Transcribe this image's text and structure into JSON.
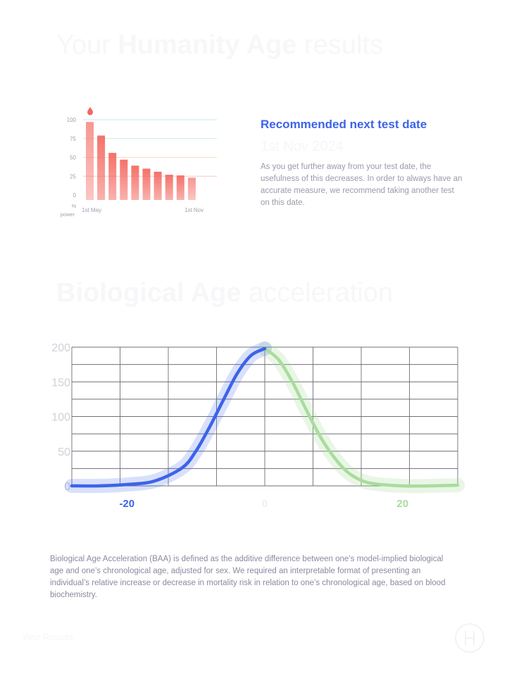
{
  "hero": {
    "title_pre": "Your ",
    "title_bold": "Humanity Age",
    "title_post": " results"
  },
  "recommendation": {
    "title": "Recommended next test date",
    "date": "1st Nov 2024",
    "text": "As you get further away from your test date, the usefulness of this decreases. In order to always have an accurate measure, we recommend taking another test on this date."
  },
  "baa": {
    "title_bold": "Biological Age",
    "title_post": " acceleration",
    "description": "Biological Age Acceleration (BAA) is defined as the additive difference between one’s model-implied biological age and one’s chronological age, adjusted for sex. We required an interpretable format of presenting an individual’s relative increase or decrease in mortality risk in relation to one’s chronological age, based on blood biochemistry."
  },
  "footer": {
    "label": "Your Results"
  },
  "colors": {
    "accent_blue": "#3c63ea",
    "accent_green": "#a8dd9c",
    "bar_red": "#f46a62",
    "drop_icon": "#f0695f"
  },
  "chart_data": [
    {
      "type": "bar",
      "title": "",
      "ylabel": "% power",
      "ylim": [
        0,
        100
      ],
      "yticks": [
        "100",
        "75",
        "50",
        "25",
        "0"
      ],
      "x_tick_labels": [
        "1st May",
        "1st Nov"
      ],
      "values": [
        97,
        79,
        56,
        47,
        39,
        35,
        31,
        27,
        26,
        23
      ],
      "marker_icon": "drop-icon"
    },
    {
      "type": "line",
      "title": "",
      "ylim": [
        0,
        200
      ],
      "xlim": [
        -28,
        28
      ],
      "yticks": [
        "200",
        "150",
        "100",
        "50",
        "0"
      ],
      "x_tick_labels": [
        "-20",
        "0",
        "20"
      ],
      "grid": true,
      "series": [
        {
          "color": "#3c63ea",
          "x": [
            -28,
            -24,
            -20,
            -16,
            -12,
            -10,
            -8,
            -6,
            -4,
            -2,
            0
          ],
          "y": [
            0,
            0,
            2,
            7,
            26,
            50,
            85,
            124,
            162,
            188,
            198
          ]
        },
        {
          "color": "#a8dd9c",
          "x": [
            0,
            2,
            4,
            6,
            8,
            10,
            12,
            14,
            16,
            20,
            24,
            28
          ],
          "y": [
            198,
            182,
            150,
            110,
            72,
            42,
            20,
            8,
            3,
            0,
            0,
            1
          ]
        }
      ]
    }
  ]
}
